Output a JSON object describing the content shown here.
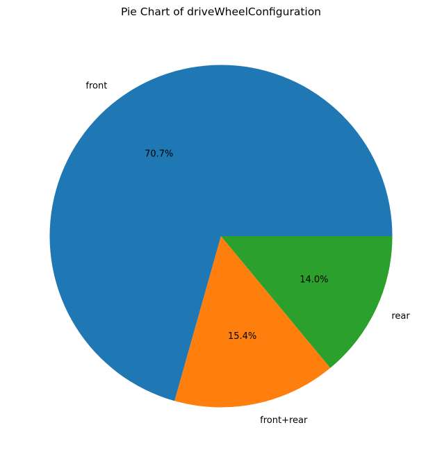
{
  "chart_data": {
    "type": "pie",
    "title": "Pie Chart of driveWheelConfiguration",
    "categories": [
      "front",
      "front+rear",
      "rear"
    ],
    "values": [
      70.7,
      15.4,
      14.0
    ],
    "percent_labels": [
      "70.7%",
      "15.4%",
      "14.0%"
    ],
    "colors": [
      "#1f77b4",
      "#ff7f0e",
      "#2ca02c"
    ],
    "start_angle_deg": 0,
    "direction": "counterclockwise",
    "legend": "none"
  }
}
